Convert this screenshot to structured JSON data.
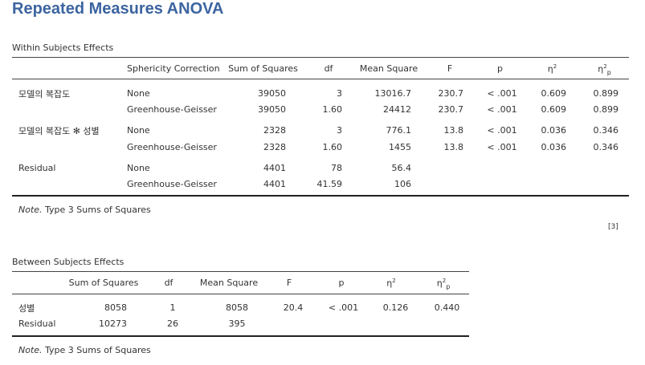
{
  "title": "Repeated Measures ANOVA",
  "within": {
    "title": "Within Subjects Effects",
    "headers": {
      "sphericity": "Sphericity Correction",
      "ss": "Sum of Squares",
      "df": "df",
      "ms": "Mean Square",
      "f": "F",
      "p": "p",
      "eta": "η",
      "eta_sup": "2",
      "etap": "η",
      "etap_sup": "2",
      "etap_sub": "p"
    },
    "rows": [
      {
        "effect": "모델의 복잡도",
        "corr": "None",
        "ss": "39050",
        "df": "3",
        "ms": "13016.7",
        "f": "230.7",
        "p": "< .001",
        "eta": "0.609",
        "etap": "0.899"
      },
      {
        "effect": "",
        "corr": "Greenhouse-Geisser",
        "ss": "39050",
        "df": "1.60",
        "ms": "24412",
        "f": "230.7",
        "p": "< .001",
        "eta": "0.609",
        "etap": "0.899"
      },
      {
        "effect": "모델의 복잡도 ✻ 성별",
        "corr": "None",
        "ss": "2328",
        "df": "3",
        "ms": "776.1",
        "f": "13.8",
        "p": "< .001",
        "eta": "0.036",
        "etap": "0.346"
      },
      {
        "effect": "",
        "corr": "Greenhouse-Geisser",
        "ss": "2328",
        "df": "1.60",
        "ms": "1455",
        "f": "13.8",
        "p": "< .001",
        "eta": "0.036",
        "etap": "0.346"
      },
      {
        "effect": "Residual",
        "corr": "None",
        "ss": "4401",
        "df": "78",
        "ms": "56.4",
        "f": "",
        "p": "",
        "eta": "",
        "etap": ""
      },
      {
        "effect": "",
        "corr": "Greenhouse-Geisser",
        "ss": "4401",
        "df": "41.59",
        "ms": "106",
        "f": "",
        "p": "",
        "eta": "",
        "etap": ""
      }
    ],
    "note_label": "Note.",
    "note_text": " Type 3 Sums of Squares",
    "ref": "[3]"
  },
  "between": {
    "title": "Between Subjects Effects",
    "headers": {
      "ss": "Sum of Squares",
      "df": "df",
      "ms": "Mean Square",
      "f": "F",
      "p": "p",
      "eta": "η",
      "eta_sup": "2",
      "etap": "η",
      "etap_sup": "2",
      "etap_sub": "p"
    },
    "rows": [
      {
        "effect": "성별",
        "ss": "8058",
        "df": "1",
        "ms": "8058",
        "f": "20.4",
        "p": "< .001",
        "eta": "0.126",
        "etap": "0.440"
      },
      {
        "effect": "Residual",
        "ss": "10273",
        "df": "26",
        "ms": "395",
        "f": "",
        "p": "",
        "eta": "",
        "etap": ""
      }
    ],
    "note_label": "Note.",
    "note_text": " Type 3 Sums of Squares"
  }
}
